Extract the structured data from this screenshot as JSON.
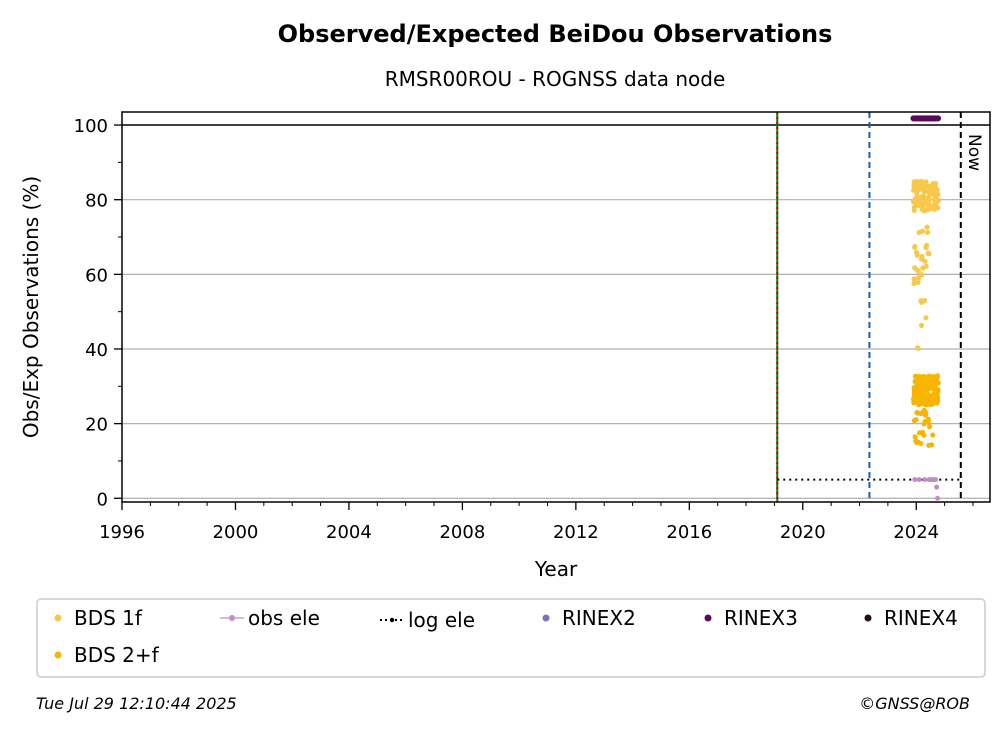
{
  "chart_data": {
    "type": "scatter",
    "title": "Observed/Expected BeiDou Observations",
    "subtitle": "RMSR00ROU - ROGNSS data node",
    "xlabel": "Year",
    "ylabel": "Obs/Exp Observations (%)",
    "xlim": [
      1996,
      2026.6
    ],
    "ylim": [
      -1,
      103.5
    ],
    "x_ticks": [
      1996,
      2000,
      2004,
      2008,
      2012,
      2016,
      2020,
      2024
    ],
    "y_ticks": [
      0,
      20,
      40,
      60,
      80,
      100
    ],
    "grid": "horizontal",
    "legend_position": "below",
    "reference_line_y": 100,
    "vlines": [
      {
        "x": 2019.1,
        "color": "#008000",
        "style": "solid"
      },
      {
        "x": 2019.1,
        "color": "#cc0000",
        "style": "dotted"
      },
      {
        "x": 2022.35,
        "color": "#1060c0",
        "style": "dashed"
      },
      {
        "x": 2025.57,
        "color": "#000000",
        "style": "dashed",
        "label": "Now"
      }
    ],
    "log_ele_line": {
      "x": [
        2019.1,
        2025.57
      ],
      "y": 5
    },
    "series": [
      {
        "name": "BDS 1f",
        "color": "#f8c84a",
        "x_range": [
          2023.9,
          2024.78
        ],
        "clusters": [
          {
            "x": [
              2023.9,
              2024.78
            ],
            "y": [
              77,
              85
            ],
            "n": 110
          },
          {
            "x": [
              2023.9,
              2024.5
            ],
            "y": [
              56,
              73
            ],
            "n": 25
          },
          {
            "x": [
              2024.05,
              2024.4
            ],
            "y": [
              46,
              54
            ],
            "n": 5
          },
          {
            "x": [
              2024.05,
              2024.15
            ],
            "y": [
              40,
              41
            ],
            "n": 2
          }
        ]
      },
      {
        "name": "BDS 2+f",
        "color": "#f7b500",
        "x_range": [
          2023.9,
          2024.78
        ],
        "clusters": [
          {
            "x": [
              2023.9,
              2024.78
            ],
            "y": [
              25,
              33
            ],
            "n": 160
          },
          {
            "x": [
              2023.9,
              2024.6
            ],
            "y": [
              14,
              24
            ],
            "n": 25
          }
        ]
      },
      {
        "name": "obs ele",
        "color": "#c28cc8",
        "x": [
          2023.95,
          2024.1,
          2024.3,
          2024.45,
          2024.55,
          2024.62,
          2024.68,
          2024.72,
          2024.75
        ],
        "y": [
          5,
          5,
          5,
          5,
          5,
          5,
          5,
          3,
          0
        ]
      },
      {
        "name": "log ele",
        "color": "#000000"
      },
      {
        "name": "RINEX2",
        "color": "#8070b8",
        "x": [],
        "y": []
      },
      {
        "name": "RINEX3",
        "color": "#5c0a5c",
        "x_range": [
          2023.9,
          2024.78
        ],
        "y": 101.8
      },
      {
        "name": "RINEX4",
        "color": "#2a0a1a",
        "x": [],
        "y": []
      }
    ]
  },
  "footer": {
    "timestamp": "Tue Jul 29 12:10:44 2025",
    "credit": "©GNSS@ROB"
  }
}
